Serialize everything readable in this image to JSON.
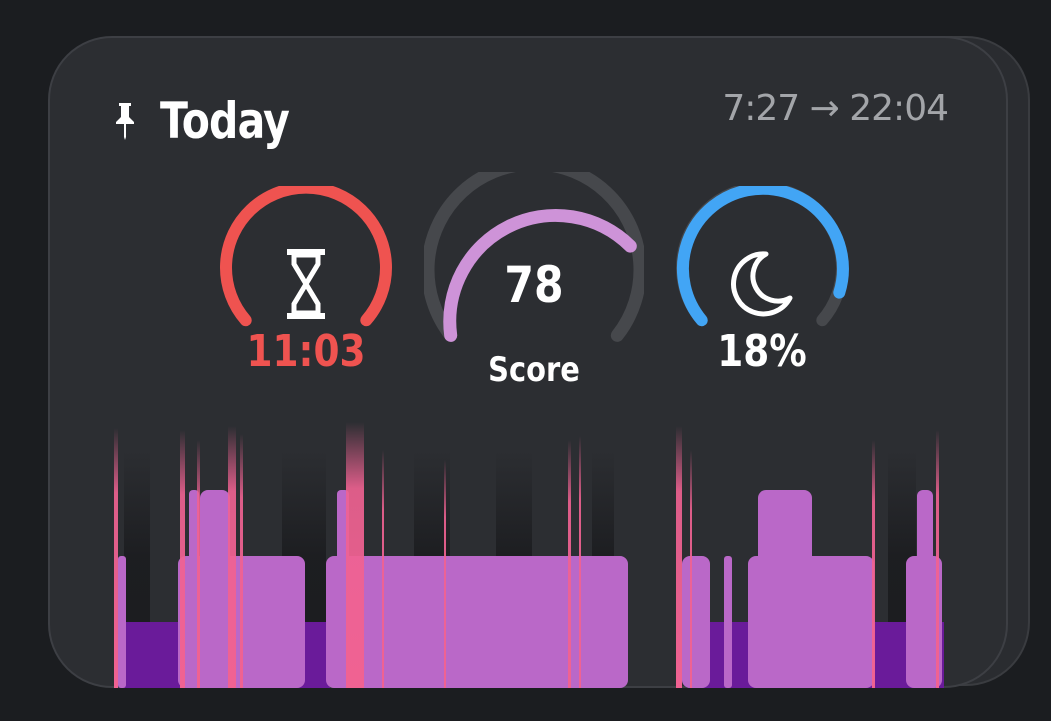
{
  "widget": {
    "title": "Today",
    "time_range": "7:27 → 22:04",
    "icons": [
      "pin-icon",
      "hourglass-icon",
      "moon-icon"
    ]
  },
  "gauges": {
    "duration": {
      "value": "11:03",
      "color": "#ef5350",
      "fill": 1.0,
      "icon": "hourglass-icon"
    },
    "score": {
      "value": "78",
      "label": "Score",
      "color": "#ce93d8",
      "fill": 0.78
    },
    "deep": {
      "value": "18%",
      "color": "#42a5f5",
      "fill": 0.82,
      "icon": "moon-icon"
    }
  },
  "colors": {
    "track": "#46484c",
    "awake": "#f06292",
    "light": "#ba68c8",
    "deep": "#6a1b9a",
    "card": "#2c2e32"
  }
}
